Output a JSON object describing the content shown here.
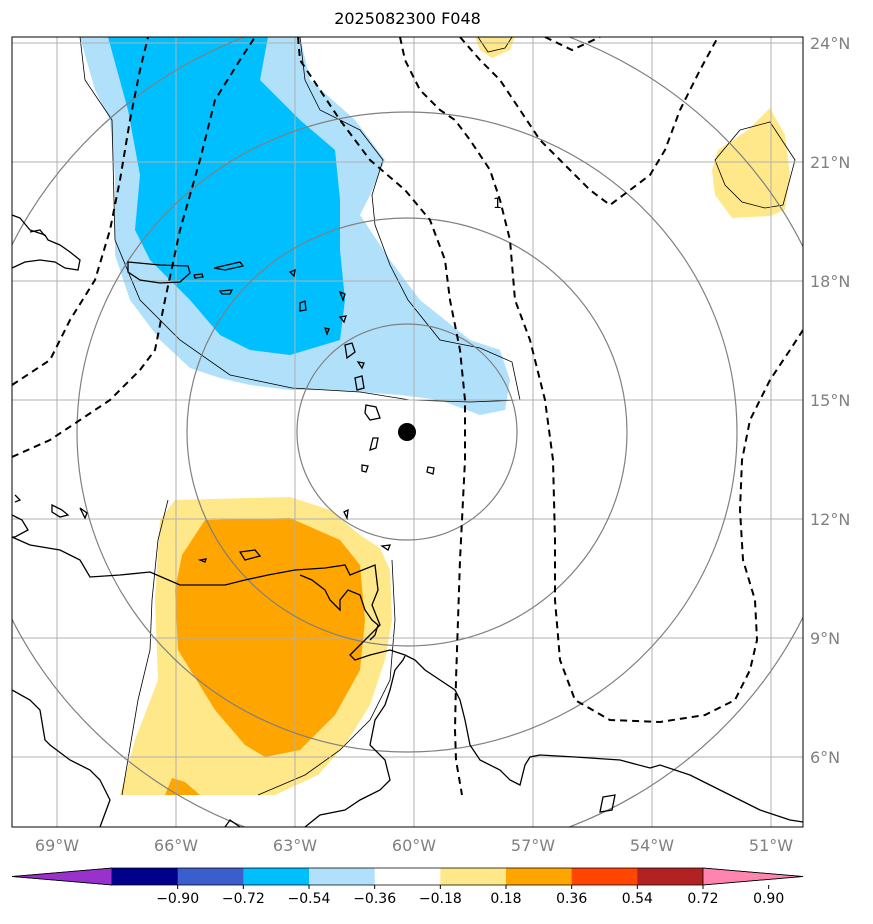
{
  "title": "2025082300 F048",
  "lat_labels": [
    "24°N",
    "21°N",
    "18°N",
    "15°N",
    "12°N",
    "9°N",
    "6°N"
  ],
  "lon_labels": [
    "69°W",
    "66°W",
    "63°W",
    "60°W",
    "57°W",
    "54°W",
    "51°W"
  ],
  "contour_label": "1",
  "colorbar": {
    "ticks": [
      "−0.90",
      "−0.72",
      "−0.54",
      "−0.36",
      "−0.18",
      "0.18",
      "0.36",
      "0.54",
      "0.72",
      "0.90"
    ],
    "colors": [
      "#9932cc",
      "#00008b",
      "#3a5fcd",
      "#00bfff",
      "#b0e0fa",
      "#ffffff",
      "#ffe88a",
      "#ffa500",
      "#ff4500",
      "#b22222",
      "#ff85b0"
    ]
  },
  "colors": {
    "grid": "#b0b0b0",
    "range_rings": "#808080",
    "coast": "#000000",
    "blue_light": "#b0e0fa",
    "blue_dark": "#00bfff",
    "yellow": "#ffe88a",
    "orange": "#ffa500"
  },
  "map": {
    "lat_range": [
      4.3,
      24.2
    ],
    "lon_range": [
      -70.1,
      -50.2
    ],
    "storm_center": {
      "lon": -60.0,
      "lat": 14.2
    }
  }
}
